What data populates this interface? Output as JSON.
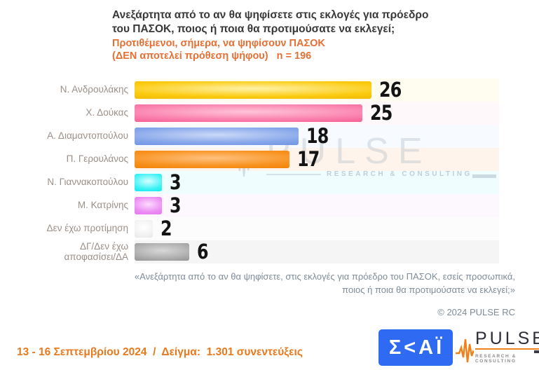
{
  "header": {
    "title": "Ανεξάρτητα από το αν θα ψηφίσετε στις εκλογές για πρόεδρο\nτου ΠΑΣΟΚ, ποιος ή ποια θα προτιμούσατε να εκλεγεί;",
    "subtitle": "Προτιθέμενοι, σήμερα, να ψηφίσουν ΠΑΣΟΚ\n(ΔΕΝ αποτελεί πρόθεση ψήφου)   n = 196"
  },
  "chart_data": {
    "type": "bar",
    "orientation": "horizontal",
    "categories": [
      "Ν. Ανδρουλάκης",
      "Χ. Δούκας",
      "Α. Διαμαντοπούλου",
      "Π. Γερουλάνος",
      "Ν. Γιαννακοπούλου",
      "Μ. Κατρίνης",
      "Δεν έχω προτίμηση",
      "ΔΓ/Δεν έχω\nαποφασίσει/ΔΑ"
    ],
    "values": [
      26,
      25,
      18,
      17,
      3,
      3,
      2,
      6
    ],
    "xlim": [
      0,
      40
    ],
    "grid": false,
    "value_labels": "end-of-bar",
    "bar_colors": [
      {
        "light": "#FFF2A8",
        "base": "#FBCB10",
        "dark": "#EFB600"
      },
      {
        "light": "#FFC4D8",
        "base": "#FA7FAC",
        "dark": "#F4568D"
      },
      {
        "light": "#CBD9F8",
        "base": "#86A6EA",
        "dark": "#6B90E2"
      },
      {
        "light": "#FFC180",
        "base": "#F8921E",
        "dark": "#EF7E00"
      },
      {
        "light": "#D6FFFF",
        "base": "#3DF2F5",
        "dark": "#00E4EA"
      },
      {
        "light": "#FBDCFD",
        "base": "#EC8BF4",
        "dark": "#E271EE"
      },
      {
        "light": "#FFFFFF",
        "base": "#F2F2F2",
        "dark": "#E2E2E2"
      },
      {
        "light": "#D8D8D8",
        "base": "#ADADAD",
        "dark": "#8C8C8C"
      }
    ],
    "row_tints": [
      "#FFFDF0",
      "#FEF8FA",
      "#F7FAFE",
      "#FEF4EB",
      "#EFFDFE",
      "#FDF8FE",
      "#FCFCFC",
      "#F5F5F5"
    ]
  },
  "watermark": {
    "brand": "PULSE",
    "tagline": "RESEARCH & CONSULTING",
    "icon": "pulse-waveform-icon"
  },
  "footnote": "«Ανεξάρτητα από το αν θα ψηφίσετε, στις εκλογές για πρόεδρο του ΠΑΣΟΚ, εσείς προσωπικά,\nποιος ή ποια θα προτιμούσατε να εκλεγεί;»",
  "copyright": "© 2024 PULSE RC",
  "footer": {
    "date_sample": "13 - 16 Σεπτεμβρίου 2024  /  Δείγμα:  1.301 συνεντεύξεις",
    "skai_logo_text": "Σ<ΑΪ",
    "pulse_logo_brand": "PULSE",
    "pulse_logo_tagline": "RESEARCH & CONSULTING"
  },
  "colors": {
    "title": "#383838",
    "subtitle_accent": "#E66F33",
    "category_label": "#9C9088",
    "value_label": "#141414",
    "footnote": "#7E8C99",
    "footer_date": "#E8791D",
    "skai_blue": "#2E6BF2",
    "pulse_orange": "#F08019"
  }
}
